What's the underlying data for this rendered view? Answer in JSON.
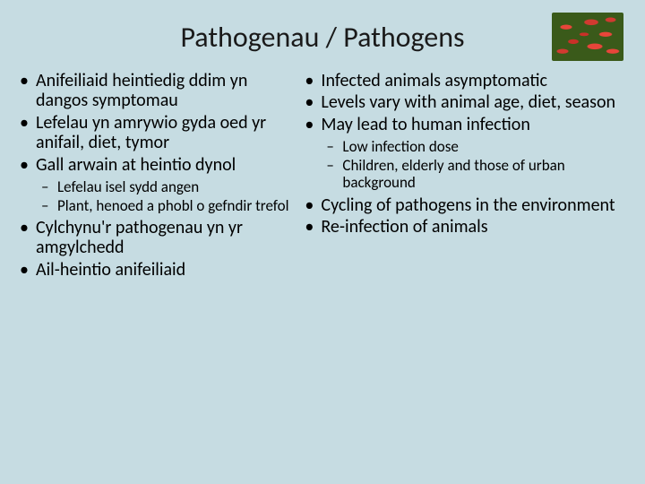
{
  "title": "Pathogenau / Pathogens",
  "colors": {
    "background": "#c6dce2",
    "text": "#000000",
    "bacteria_bg": "#3a5a1a",
    "bacteria_rods": [
      "#e8453a",
      "#d13a30",
      "#c93028"
    ]
  },
  "typography": {
    "title_fontsize": 32,
    "bullet_fontsize": 20,
    "sub_bullet_fontsize": 17,
    "font_family": "Calibri"
  },
  "left": {
    "items": [
      {
        "text": "Anifeiliaid heintiedig ddim yn dangos symptomau"
      },
      {
        "text": "Lefelau yn amrywio gyda oed yr anifail, diet, tymor"
      },
      {
        "text": "Gall arwain at heintio dynol",
        "sub": [
          "Lefelau isel sydd angen",
          "Plant, henoed a phobl o gefndir trefol"
        ]
      },
      {
        "text": "Cylchynu'r pathogenau yn yr amgylchedd"
      },
      {
        "text": "Ail-heintio anifeiliaid"
      }
    ]
  },
  "right": {
    "items": [
      {
        "text": "Infected animals asymptomatic"
      },
      {
        "text": "Levels vary with animal age, diet, season"
      },
      {
        "text": "May lead to human infection",
        "sub": [
          "Low infection dose",
          "Children, elderly and those of urban background"
        ]
      },
      {
        "text": "Cycling of pathogens in the environment"
      },
      {
        "text": "Re-infection of animals"
      }
    ]
  }
}
